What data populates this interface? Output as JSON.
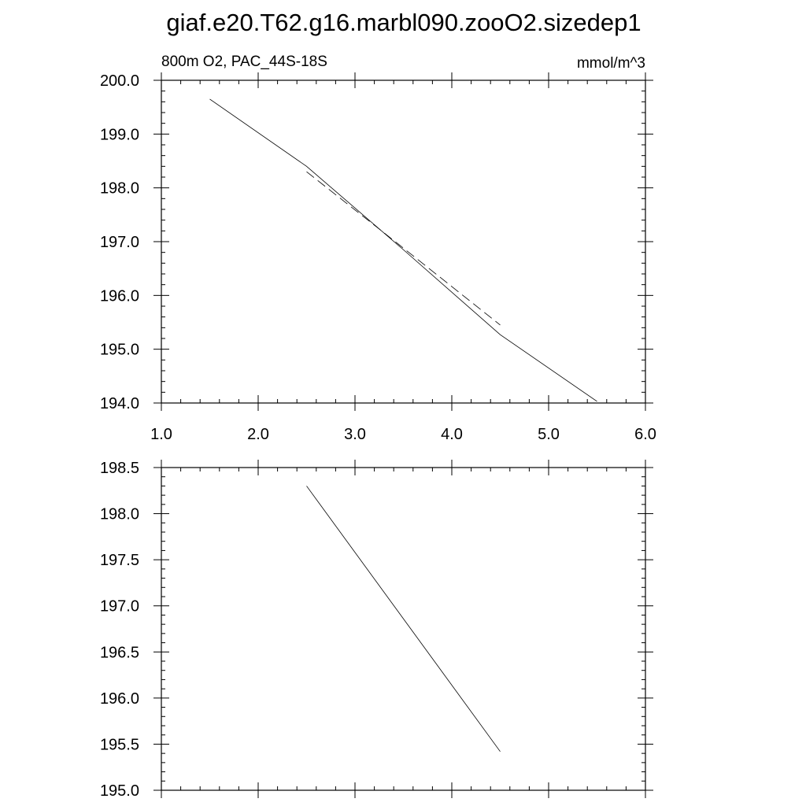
{
  "title": "giaf.e20.T62.g16.marbl090.zooO2.sizedep1",
  "chart_data": [
    {
      "type": "line",
      "left_label": "800m O2, PAC_44S-18S",
      "right_label": "mmol/m^3",
      "xlim": [
        1.0,
        6.0
      ],
      "ylim": [
        194.0,
        200.0
      ],
      "x_ticks": [
        "1.0",
        "2.0",
        "3.0",
        "4.0",
        "5.0",
        "6.0"
      ],
      "y_ticks": [
        "194.0",
        "195.0",
        "196.0",
        "197.0",
        "198.0",
        "199.0",
        "200.0"
      ],
      "grid": false,
      "series": [
        {
          "style": "solid",
          "x": [
            1.5,
            2.5,
            3.5,
            4.5,
            5.5
          ],
          "y": [
            199.65,
            198.4,
            196.85,
            195.27,
            194.03
          ]
        },
        {
          "style": "dashed",
          "x": [
            2.5,
            3.5,
            4.5
          ],
          "y": [
            198.3,
            196.88,
            195.45
          ]
        }
      ]
    },
    {
      "type": "line",
      "xlim": [
        1.0,
        6.0
      ],
      "ylim": [
        195.0,
        198.5
      ],
      "x_ticks": [
        "",
        "",
        "",
        "",
        "",
        ""
      ],
      "y_ticks": [
        "195.0",
        "195.5",
        "196.0",
        "196.5",
        "197.0",
        "197.5",
        "198.0",
        "198.5"
      ],
      "grid": false,
      "series": [
        {
          "style": "solid",
          "x": [
            2.5,
            4.5
          ],
          "y": [
            198.3,
            195.42
          ]
        }
      ]
    }
  ]
}
